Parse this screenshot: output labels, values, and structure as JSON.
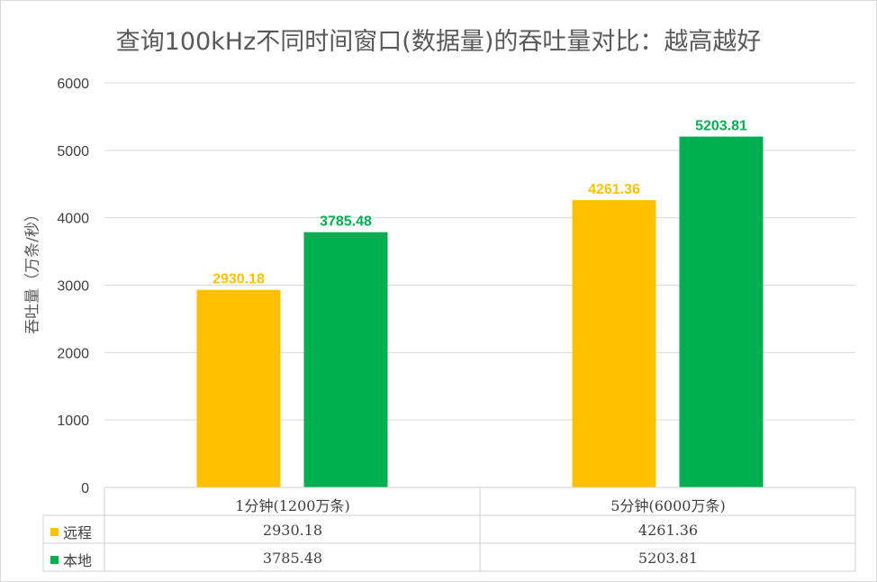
{
  "chart_data": {
    "type": "bar",
    "title": "查询100kHz不同时间窗口(数据量)的吞吐量对比：越高越好",
    "ylabel": "吞吐量（万条/秒）",
    "xlabel": "",
    "categories": [
      "1分钟(1200万条)",
      "5分钟(6000万条)"
    ],
    "series": [
      {
        "name": "远程",
        "values": [
          2930.18,
          4261.36
        ],
        "labels": [
          "2930.18",
          "4261.36"
        ],
        "color": "#FFC000"
      },
      {
        "name": "本地",
        "values": [
          3785.48,
          5203.81
        ],
        "labels": [
          "3785.48",
          "5203.81"
        ],
        "color": "#00B050"
      }
    ],
    "ylim": [
      0,
      6000
    ],
    "yticks": [
      "0",
      "1000",
      "2000",
      "3000",
      "4000",
      "5000",
      "6000"
    ],
    "ytick_values": [
      0,
      1000,
      2000,
      3000,
      4000,
      5000,
      6000
    ],
    "grid": true,
    "legend": "data-table",
    "data_table": {
      "rows": [
        {
          "key": "远程",
          "cells": [
            "2930.18",
            "4261.36"
          ]
        },
        {
          "key": "本地",
          "cells": [
            "3785.48",
            "5203.81"
          ]
        }
      ]
    }
  }
}
